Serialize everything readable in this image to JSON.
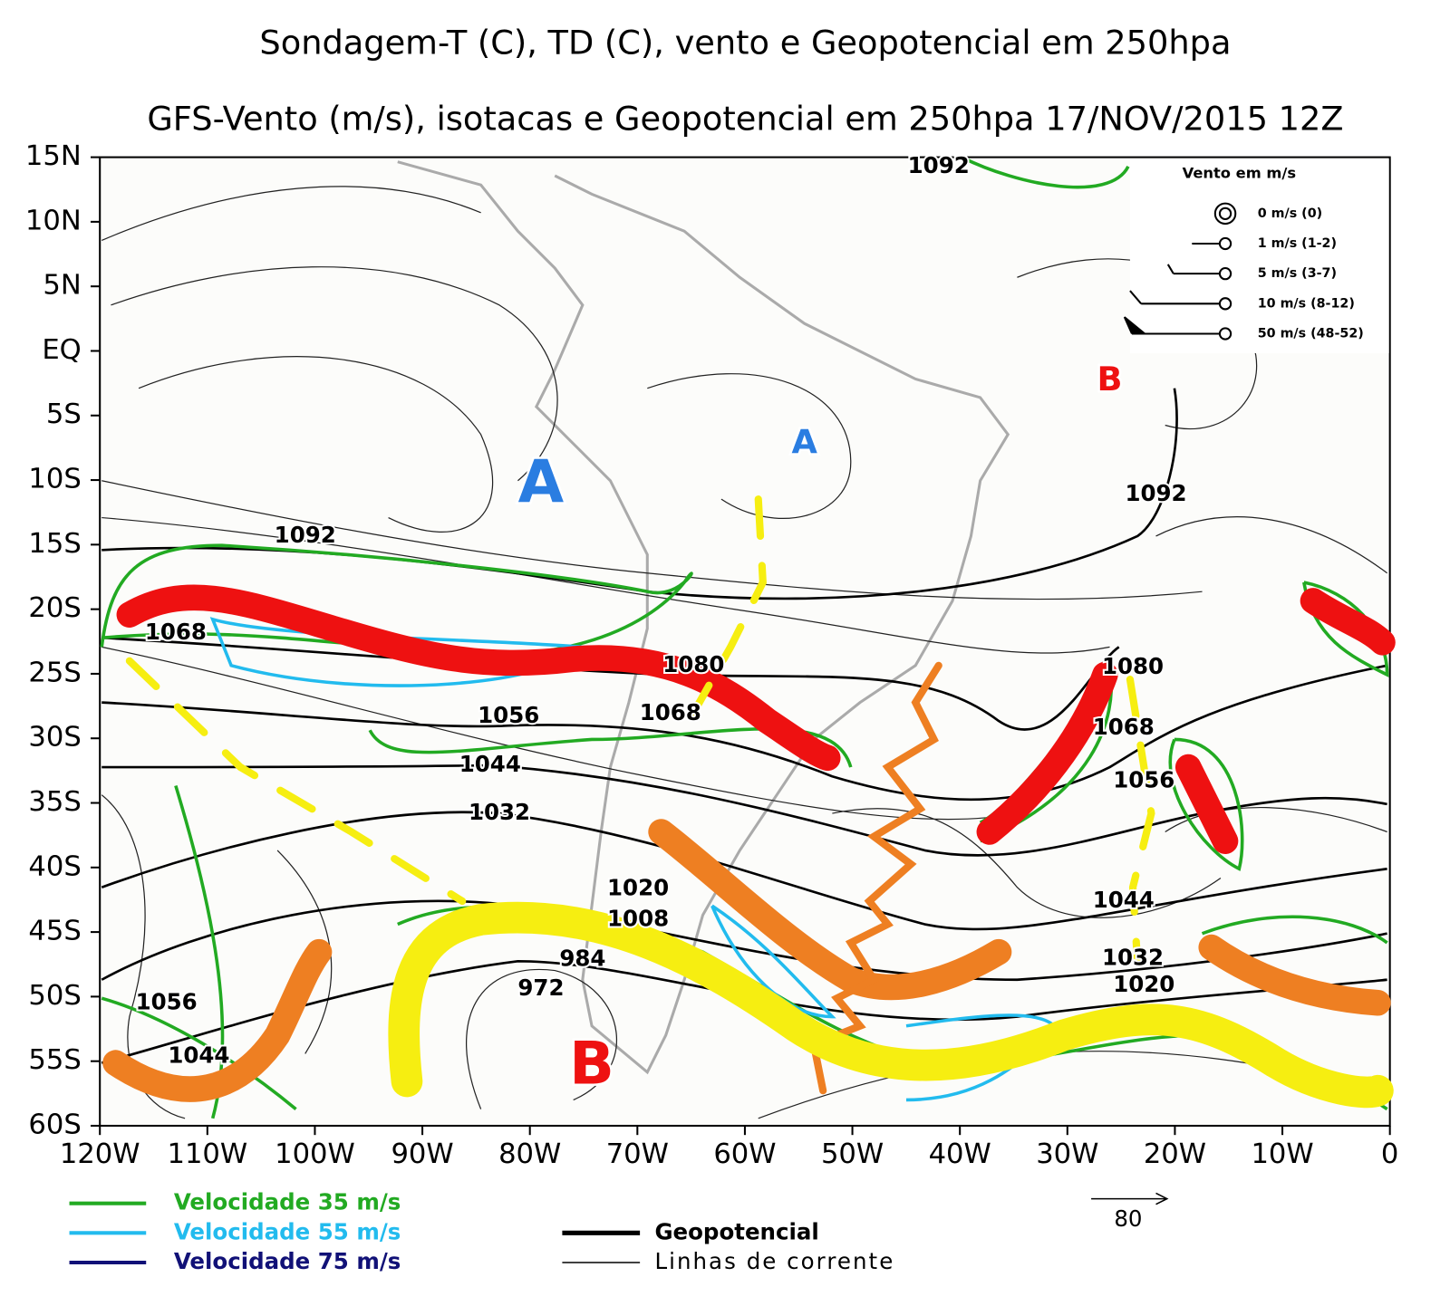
{
  "map": {
    "title": "Sondagem-T (C), TD (C), vento e Geopotencial em 250hpa",
    "subtitle": "GFS-Vento (m/s), isotacas e Geopotencial em 250hpa 17/NOV/2015 12Z",
    "lat_labels": [
      "15N",
      "10N",
      "5N",
      "EQ",
      "5S",
      "10S",
      "15S",
      "20S",
      "25S",
      "30S",
      "35S",
      "40S",
      "45S",
      "50S",
      "55S",
      "60S"
    ],
    "lon_labels": [
      "120W",
      "110W",
      "100W",
      "90W",
      "80W",
      "70W",
      "60W",
      "50W",
      "40W",
      "30W",
      "20W",
      "10W",
      "0"
    ],
    "contour_labels": [
      "1092",
      "1092",
      "1092",
      "1080",
      "1080",
      "1068",
      "1068",
      "1068",
      "1056",
      "1056",
      "1056",
      "1044",
      "1044",
      "1044",
      "1032",
      "1032",
      "1020",
      "1020",
      "1008",
      "984",
      "972"
    ],
    "centers": [
      "A",
      "A",
      "B",
      "B"
    ],
    "wind_legend": {
      "title": "Vento em m/s",
      "items": [
        "0 m/s (0)",
        "1 m/s (1-2)",
        "5 m/s (3-7)",
        "10 m/s (8-12)",
        "50 m/s (48-52)"
      ]
    },
    "legend": {
      "isotachs": [
        "Velocidade 35 m/s",
        "Velocidade 55 m/s",
        "Velocidade 75 m/s"
      ],
      "lines": [
        "Geopotencial",
        "Linhas de corrente"
      ],
      "reference_vector": "80"
    }
  }
}
